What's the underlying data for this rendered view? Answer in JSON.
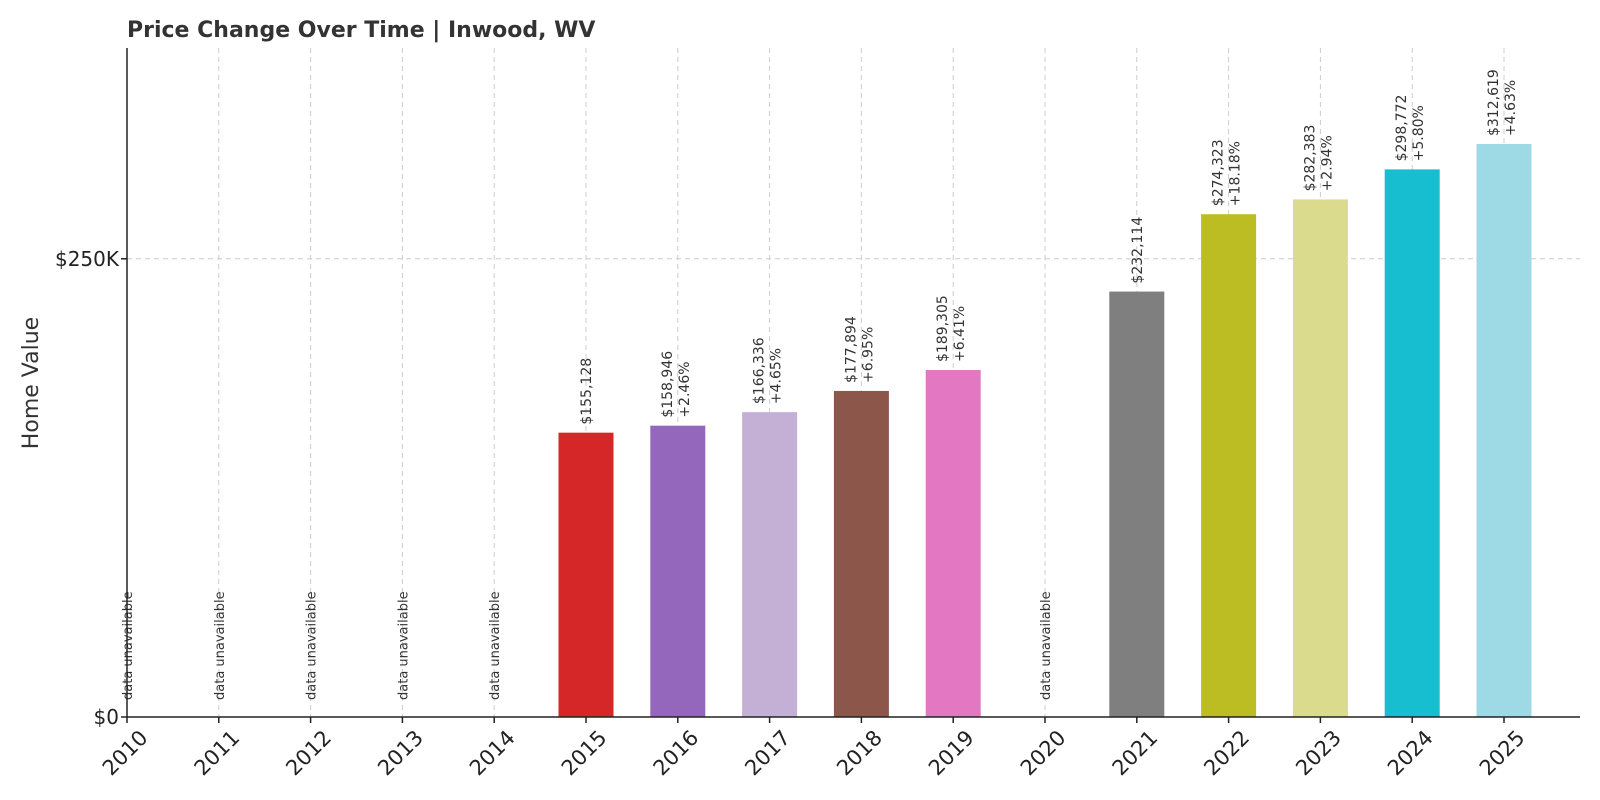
{
  "chart_data": {
    "type": "bar",
    "title": "Price Change Over Time | Inwood, WV",
    "xlabel": "",
    "ylabel": "Home Value",
    "ylim": [
      0,
      365000
    ],
    "yticks": [
      {
        "value": 0,
        "label": "$0"
      },
      {
        "value": 250000,
        "label": "$250K"
      }
    ],
    "grid": true,
    "unavailable_label": "data unavailable",
    "categories": [
      "2010",
      "2011",
      "2012",
      "2013",
      "2014",
      "2015",
      "2016",
      "2017",
      "2018",
      "2019",
      "2020",
      "2021",
      "2022",
      "2023",
      "2024",
      "2025"
    ],
    "values": [
      null,
      null,
      null,
      null,
      null,
      155128,
      158946,
      166336,
      177894,
      189305,
      null,
      232114,
      274323,
      282383,
      298772,
      312619
    ],
    "value_labels": [
      "",
      "",
      "",
      "",
      "",
      "$155,128",
      "$158,946",
      "$166,336",
      "$177,894",
      "$189,305",
      "",
      "$232,114",
      "$274,323",
      "$282,383",
      "$298,772",
      "$312,619"
    ],
    "change_labels": [
      "",
      "",
      "",
      "",
      "",
      "",
      "+2.46%",
      "+4.65%",
      "+6.95%",
      "+6.41%",
      "",
      "",
      "+18.18%",
      "+2.94%",
      "+5.80%",
      "+4.63%"
    ],
    "colors": [
      "#1f77b4",
      "#ff7f0e",
      "#2ca02c",
      "#d62728",
      "#9467bd",
      "#d62728",
      "#9467bd",
      "#c5b0d5",
      "#8c564b",
      "#e377c2",
      "#7f7f7f",
      "#7f7f7f",
      "#bcbd22",
      "#dbdb8d",
      "#17becf",
      "#9edae5"
    ]
  }
}
